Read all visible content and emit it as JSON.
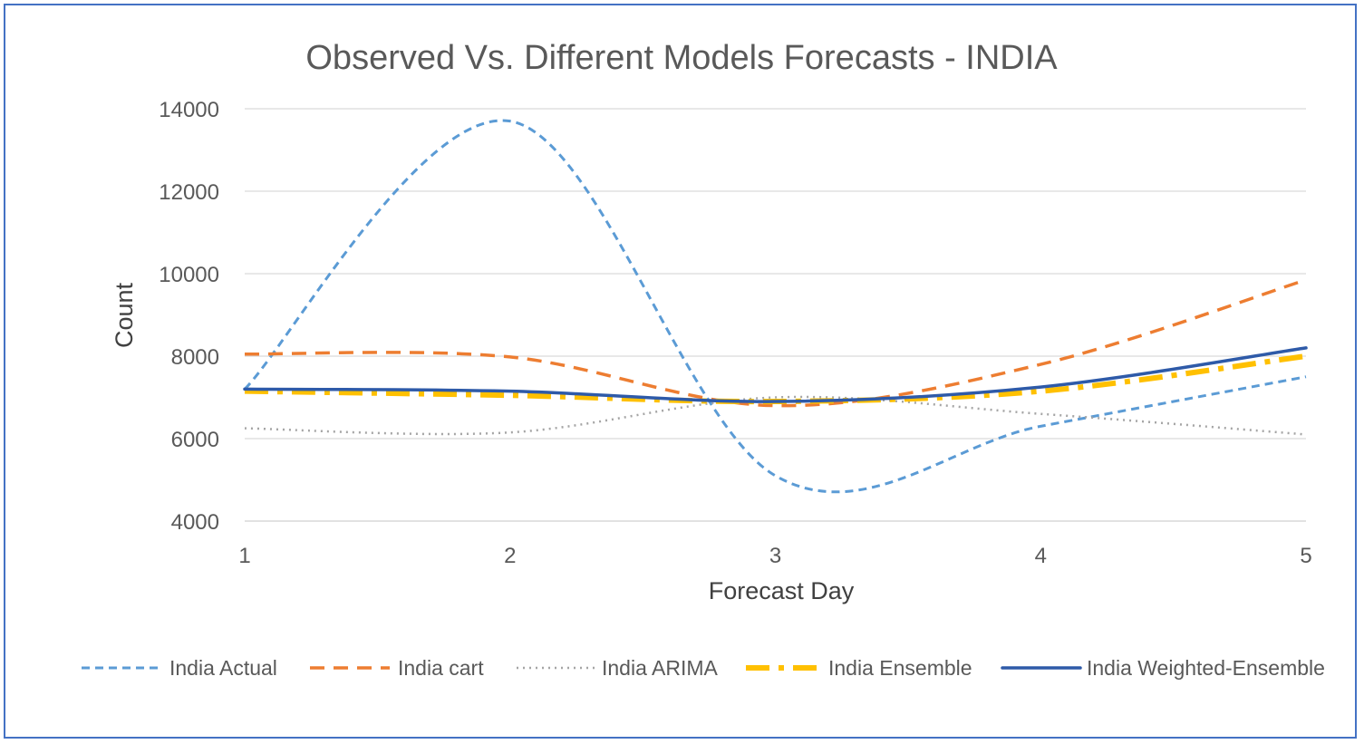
{
  "chart_data": {
    "type": "line",
    "title": "Observed Vs. Different Models Forecasts - INDIA",
    "xlabel": "Forecast Day",
    "ylabel": "Count",
    "x": [
      1,
      2,
      3,
      4,
      5
    ],
    "x_tick_labels": [
      "1",
      "2",
      "3",
      "4",
      "5"
    ],
    "ylim": [
      4000,
      14000
    ],
    "y_tick_values": [
      4000,
      6000,
      8000,
      10000,
      12000,
      14000
    ],
    "y_tick_labels": [
      "4000",
      "6000",
      "8000",
      "10000",
      "12000",
      "14000"
    ],
    "grid": true,
    "smooth": true,
    "legend_position": "bottom",
    "series": [
      {
        "name": "India Actual",
        "values": [
          7200,
          13700,
          5100,
          6300,
          7500
        ],
        "color": "#5b9bd5",
        "dash": "dashed"
      },
      {
        "name": "India cart",
        "values": [
          8050,
          7980,
          6800,
          7800,
          9850
        ],
        "color": "#ed7d31",
        "dash": "long-dashed"
      },
      {
        "name": "India ARIMA",
        "values": [
          6250,
          6150,
          7000,
          6600,
          6100
        ],
        "color": "#a5a5a5",
        "dash": "dotted"
      },
      {
        "name": "India Ensemble",
        "values": [
          7150,
          7050,
          6900,
          7150,
          8000
        ],
        "color": "#ffc000",
        "dash": "dash-dot"
      },
      {
        "name": "India Weighted-Ensemble",
        "values": [
          7200,
          7150,
          6900,
          7250,
          8200
        ],
        "color": "#2e5aa8",
        "dash": "solid"
      }
    ]
  }
}
